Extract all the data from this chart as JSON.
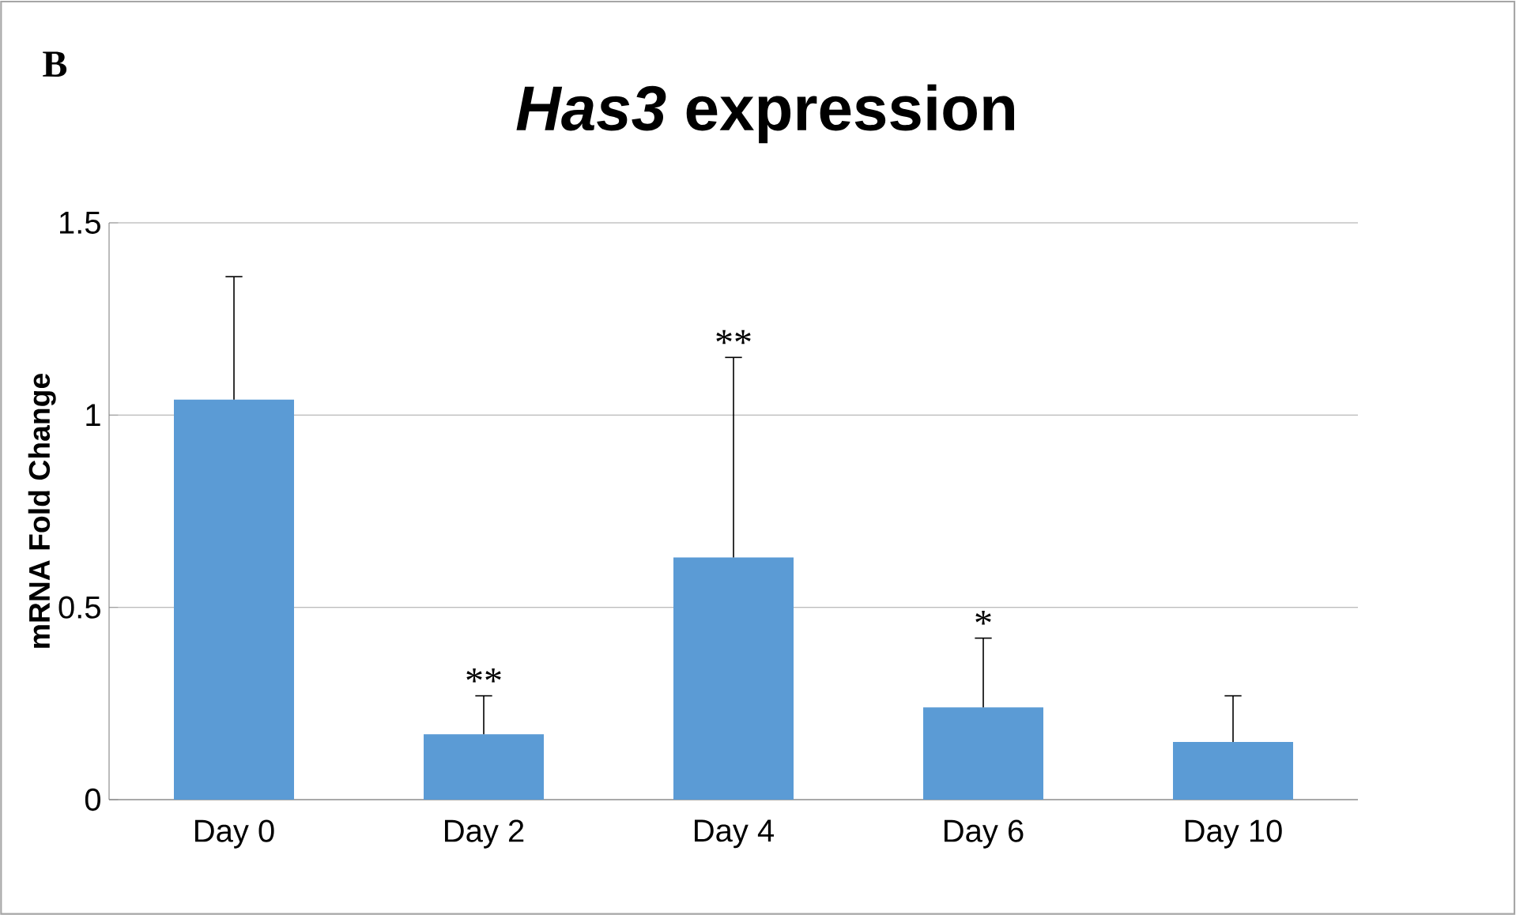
{
  "chart_data": {
    "type": "bar",
    "title": "*Has3* expression",
    "ylabel": "mRNA Fold Change",
    "categories": [
      "Day 0",
      "Day 2",
      "Day 4",
      "Day 6",
      "Day 10"
    ],
    "values": [
      1.04,
      0.17,
      0.63,
      0.24,
      0.15
    ],
    "errors": [
      [
        1.04,
        1.36
      ],
      [
        0.17,
        0.27
      ],
      [
        0.63,
        1.15
      ],
      [
        0.24,
        0.42
      ],
      [
        0.15,
        0.27
      ]
    ],
    "color": "#5b9bd5",
    "ylim": [
      0,
      1.5
    ],
    "yticks": [
      0,
      0.5,
      1,
      1.5
    ],
    "grid": "y",
    "annotations": [
      "B",
      {
        "text": "**",
        "x": "Day 2",
        "y": 0.27
      },
      {
        "text": "**",
        "x": "Day 4",
        "y": 1.15
      },
      {
        "text": "*",
        "x": "Day 6",
        "y": 0.42
      }
    ]
  }
}
